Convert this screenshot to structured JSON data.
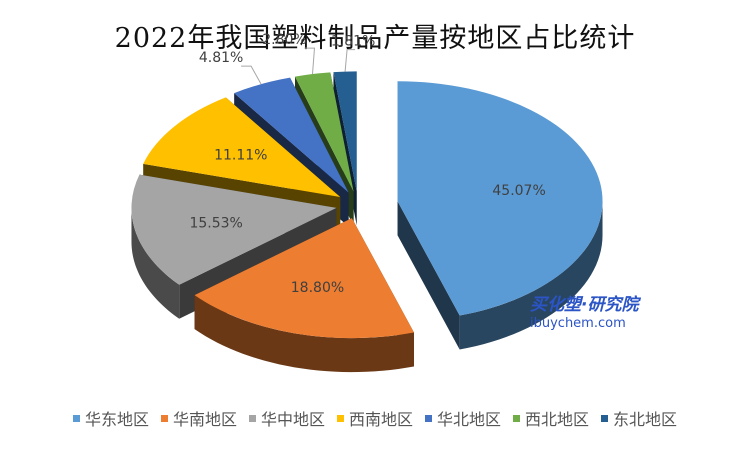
{
  "title": "2022年我国塑料制品产量按地区占比统计",
  "watermark": {
    "line1": "买化塑·研究院",
    "line2": "ibuychem.com"
  },
  "chart_data": {
    "type": "pie",
    "style": "3d-exploded",
    "title": "2022年我国塑料制品产量按地区占比统计",
    "legend_position": "bottom",
    "series": [
      {
        "name": "华东地区",
        "label": "45.07%",
        "value": 45.07,
        "color": "#5b9bd5"
      },
      {
        "name": "华南地区",
        "label": "18.80%",
        "value": 18.8,
        "color": "#ed7d31"
      },
      {
        "name": "华中地区",
        "label": "15.53%",
        "value": 15.53,
        "color": "#a5a5a5"
      },
      {
        "name": "西南地区",
        "label": "11.11%",
        "value": 11.11,
        "color": "#ffc000"
      },
      {
        "name": "华北地区",
        "label": "4.81%",
        "value": 4.81,
        "color": "#4472c4"
      },
      {
        "name": "西北地区",
        "label": "2.80%",
        "value": 2.8,
        "color": "#70ad47"
      },
      {
        "name": "东北地区",
        "label": "1.81%",
        "value": 1.81,
        "color": "#255e91"
      }
    ]
  }
}
